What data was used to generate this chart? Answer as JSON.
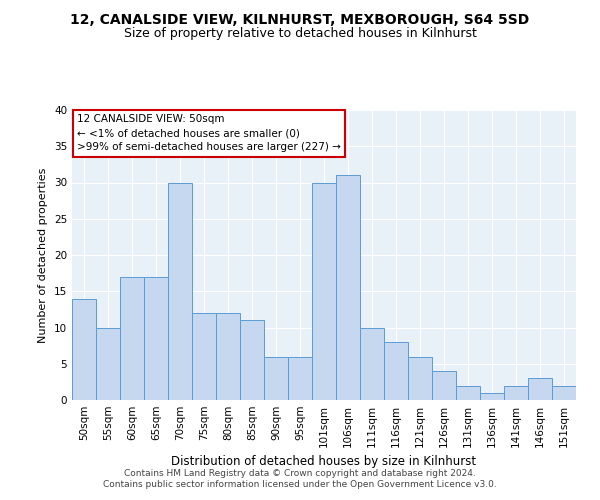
{
  "title1": "12, CANALSIDE VIEW, KILNHURST, MEXBOROUGH, S64 5SD",
  "title2": "Size of property relative to detached houses in Kilnhurst",
  "xlabel": "Distribution of detached houses by size in Kilnhurst",
  "ylabel": "Number of detached properties",
  "categories": [
    "50sqm",
    "55sqm",
    "60sqm",
    "65sqm",
    "70sqm",
    "75sqm",
    "80sqm",
    "85sqm",
    "90sqm",
    "95sqm",
    "101sqm",
    "106sqm",
    "111sqm",
    "116sqm",
    "121sqm",
    "126sqm",
    "131sqm",
    "136sqm",
    "141sqm",
    "146sqm",
    "151sqm"
  ],
  "values": [
    14,
    10,
    17,
    17,
    30,
    12,
    12,
    11,
    6,
    6,
    30,
    31,
    10,
    8,
    6,
    4,
    2,
    1,
    2,
    3,
    2
  ],
  "bar_color": "#c5d8f0",
  "bar_edge_color": "#5b9bd5",
  "annotation_line1": "12 CANALSIDE VIEW: 50sqm",
  "annotation_line2": "← <1% of detached houses are smaller (0)",
  "annotation_line3": ">99% of semi-detached houses are larger (227) →",
  "annotation_box_color": "#ffffff",
  "annotation_box_edge": "#cc0000",
  "ylim": [
    0,
    40
  ],
  "yticks": [
    0,
    5,
    10,
    15,
    20,
    25,
    30,
    35,
    40
  ],
  "footer1": "Contains HM Land Registry data © Crown copyright and database right 2024.",
  "footer2": "Contains public sector information licensed under the Open Government Licence v3.0.",
  "bg_color": "#ffffff",
  "plot_bg_color": "#e8f0f8",
  "grid_color": "#ffffff",
  "title1_fontsize": 10,
  "title2_fontsize": 9,
  "xlabel_fontsize": 8.5,
  "ylabel_fontsize": 8,
  "tick_fontsize": 7.5,
  "annotation_fontsize": 7.5,
  "footer_fontsize": 6.5
}
